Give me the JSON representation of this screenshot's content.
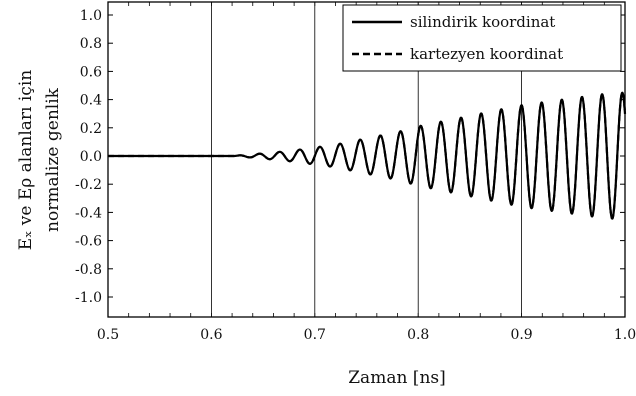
{
  "chart_data": {
    "type": "line",
    "title": "",
    "xlabel": "Zaman  [ns]",
    "ylabel_line1": "Eₓ ve Eρ alanları için",
    "ylabel_line2": "normalize genlik",
    "xlim": [
      0.5,
      1.0
    ],
    "ylim": [
      -1.1,
      1.1
    ],
    "x_ticks": [
      0.5,
      0.6,
      0.7,
      0.8,
      0.9,
      1.0
    ],
    "x_tick_labels": [
      "0.5",
      "0.6",
      "0.7",
      "0.8",
      "0.9",
      "1.0"
    ],
    "y_ticks": [
      1.0,
      0.8,
      0.6,
      0.4,
      0.2,
      0.0,
      -0.2,
      -0.4,
      -0.6,
      -0.8,
      -1.0
    ],
    "y_tick_labels": [
      "1.0",
      "0.8",
      "0.6",
      "0.4",
      "0.2",
      "0.0",
      "-0.2",
      "-0.4",
      "-0.6",
      "-0.8",
      "-1.0"
    ],
    "grid": "vertical lines at x ticks",
    "legend_position": "top-right",
    "signal": {
      "onset_ns": 0.622,
      "period_ns": 0.0195,
      "envelope_points": [
        [
          0.62,
          0.0
        ],
        [
          0.64,
          0.012
        ],
        [
          0.66,
          0.025
        ],
        [
          0.68,
          0.04
        ],
        [
          0.7,
          0.06
        ],
        [
          0.72,
          0.08
        ],
        [
          0.74,
          0.11
        ],
        [
          0.76,
          0.14
        ],
        [
          0.78,
          0.17
        ],
        [
          0.8,
          0.21
        ],
        [
          0.82,
          0.24
        ],
        [
          0.84,
          0.27
        ],
        [
          0.86,
          0.3
        ],
        [
          0.88,
          0.33
        ],
        [
          0.9,
          0.36
        ],
        [
          0.92,
          0.38
        ],
        [
          0.94,
          0.4
        ],
        [
          0.96,
          0.42
        ],
        [
          0.98,
          0.44
        ],
        [
          1.0,
          0.45
        ]
      ]
    },
    "series": [
      {
        "name": "silindirik koordinat",
        "line_style": "solid",
        "color": "#000000"
      },
      {
        "name": "kartezyen koordinat",
        "line_style": "dashed",
        "color": "#000000"
      }
    ]
  }
}
